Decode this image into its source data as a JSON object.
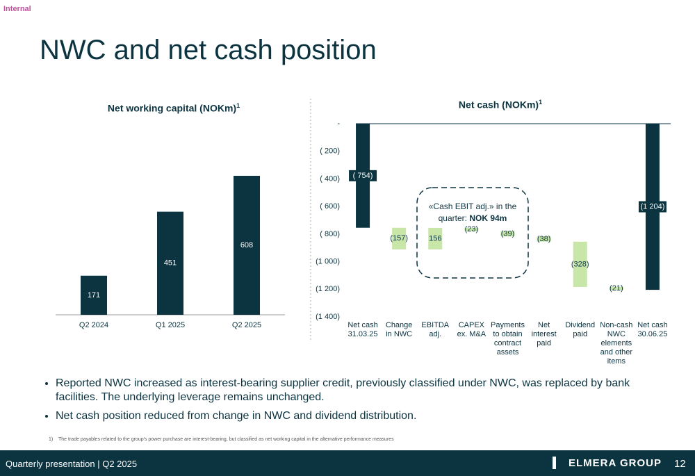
{
  "header": {
    "tag": "Internal",
    "title": "NWC and net cash position"
  },
  "chart_data": [
    {
      "type": "bar",
      "title": "Net working capital (NOKm)",
      "title_note": "1",
      "categories": [
        "Q2 2024",
        "Q1 2025",
        "Q2 2025"
      ],
      "values": [
        171,
        451,
        608
      ],
      "color": "#0b3340"
    },
    {
      "type": "waterfall",
      "title": "Net cash (NOKm)",
      "title_note": "1",
      "categories": [
        "Net cash 31.03.25",
        "Change in NWC",
        "EBITDA adj.",
        "CAPEX ex. M&A",
        "Payments to obtain contract assets",
        "Net interest paid",
        "Dividend paid",
        "Non-cash NWC elements and other items",
        "Net cash 30.06.25"
      ],
      "values": [
        -754,
        -157,
        156,
        -23,
        -39,
        -38,
        -328,
        -21,
        -1204
      ],
      "value_labels": [
        "( 754)",
        "(157)",
        "156",
        "(23)",
        "(39)",
        "(38)",
        "(328)",
        "(21)",
        "(1 204)"
      ],
      "color": "#c8e6a8",
      "total_color": "#0b3340",
      "ylim": [
        -1400,
        0
      ],
      "yticks": [
        {
          "value": 0,
          "label": "-"
        },
        {
          "value": -200,
          "label": "( 200)"
        },
        {
          "value": -400,
          "label": "( 400)"
        },
        {
          "value": -600,
          "label": "( 600)"
        },
        {
          "value": -800,
          "label": "( 800)"
        },
        {
          "value": -1000,
          "label": "(1 000)"
        },
        {
          "value": -1200,
          "label": "(1 200)"
        },
        {
          "value": -1400,
          "label": "(1 400)"
        }
      ],
      "annotation": {
        "text": "«Cash EBIT adj.»  in the quarter: ",
        "emphasis": "NOK 94m"
      }
    }
  ],
  "bullets": [
    "Reported NWC increased as interest-bearing supplier credit, previously classified under NWC, was replaced by bank facilities. The underlying leverage remains unchanged.",
    "Net cash position reduced from change in NWC and dividend distribution."
  ],
  "footnote": {
    "marker": "1)",
    "text": "The trade payables related to the group's power purchase are interest-bearing, but classified as net working capital in the alternative performance measures"
  },
  "footer": {
    "text": "Quarterly presentation | Q2 2025",
    "logo": "ELMERA GROUP",
    "page": "12"
  }
}
